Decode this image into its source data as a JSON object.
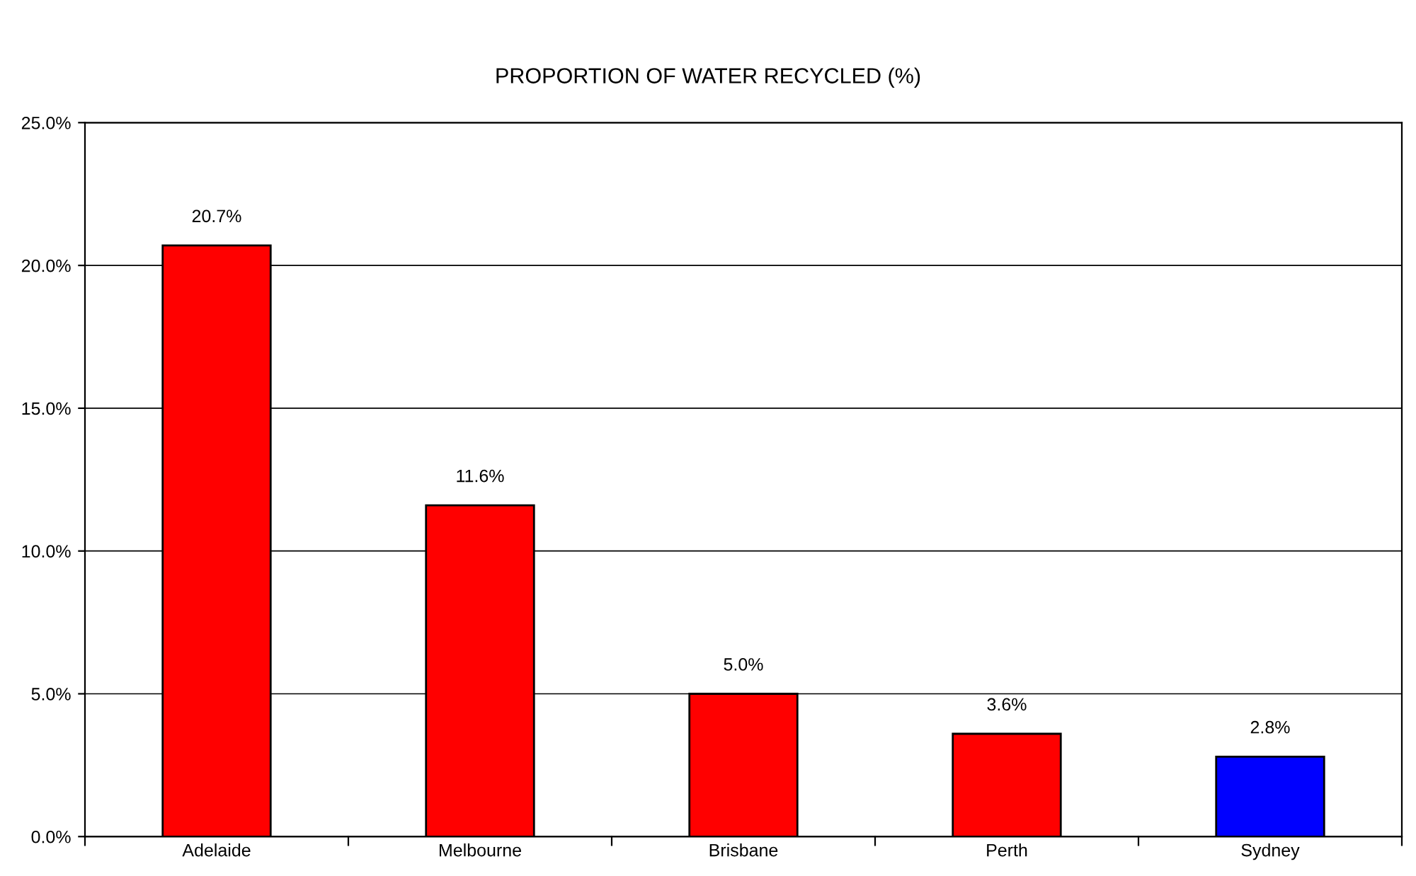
{
  "chart_data": {
    "type": "bar",
    "title": "PROPORTION OF WATER RECYCLED (%)",
    "categories": [
      "Adelaide",
      "Melbourne",
      "Brisbane",
      "Perth",
      "Sydney"
    ],
    "values": [
      20.7,
      11.6,
      5.0,
      3.6,
      2.8
    ],
    "colors": [
      "#ff0000",
      "#ff0000",
      "#ff0000",
      "#ff0000",
      "#0000ff"
    ],
    "value_labels": [
      "20.7%",
      "11.6%",
      "5.0%",
      "3.6%",
      "2.8%"
    ],
    "ylim": [
      0,
      25
    ],
    "yticks": [
      {
        "value": 0,
        "label": "0.0%"
      },
      {
        "value": 5,
        "label": "5.0%"
      },
      {
        "value": 10,
        "label": "10.0%"
      },
      {
        "value": 15,
        "label": "15.0%"
      },
      {
        "value": 20,
        "label": "20.0%"
      },
      {
        "value": 25,
        "label": "25.0%"
      }
    ],
    "grid": "y",
    "legend": false
  }
}
